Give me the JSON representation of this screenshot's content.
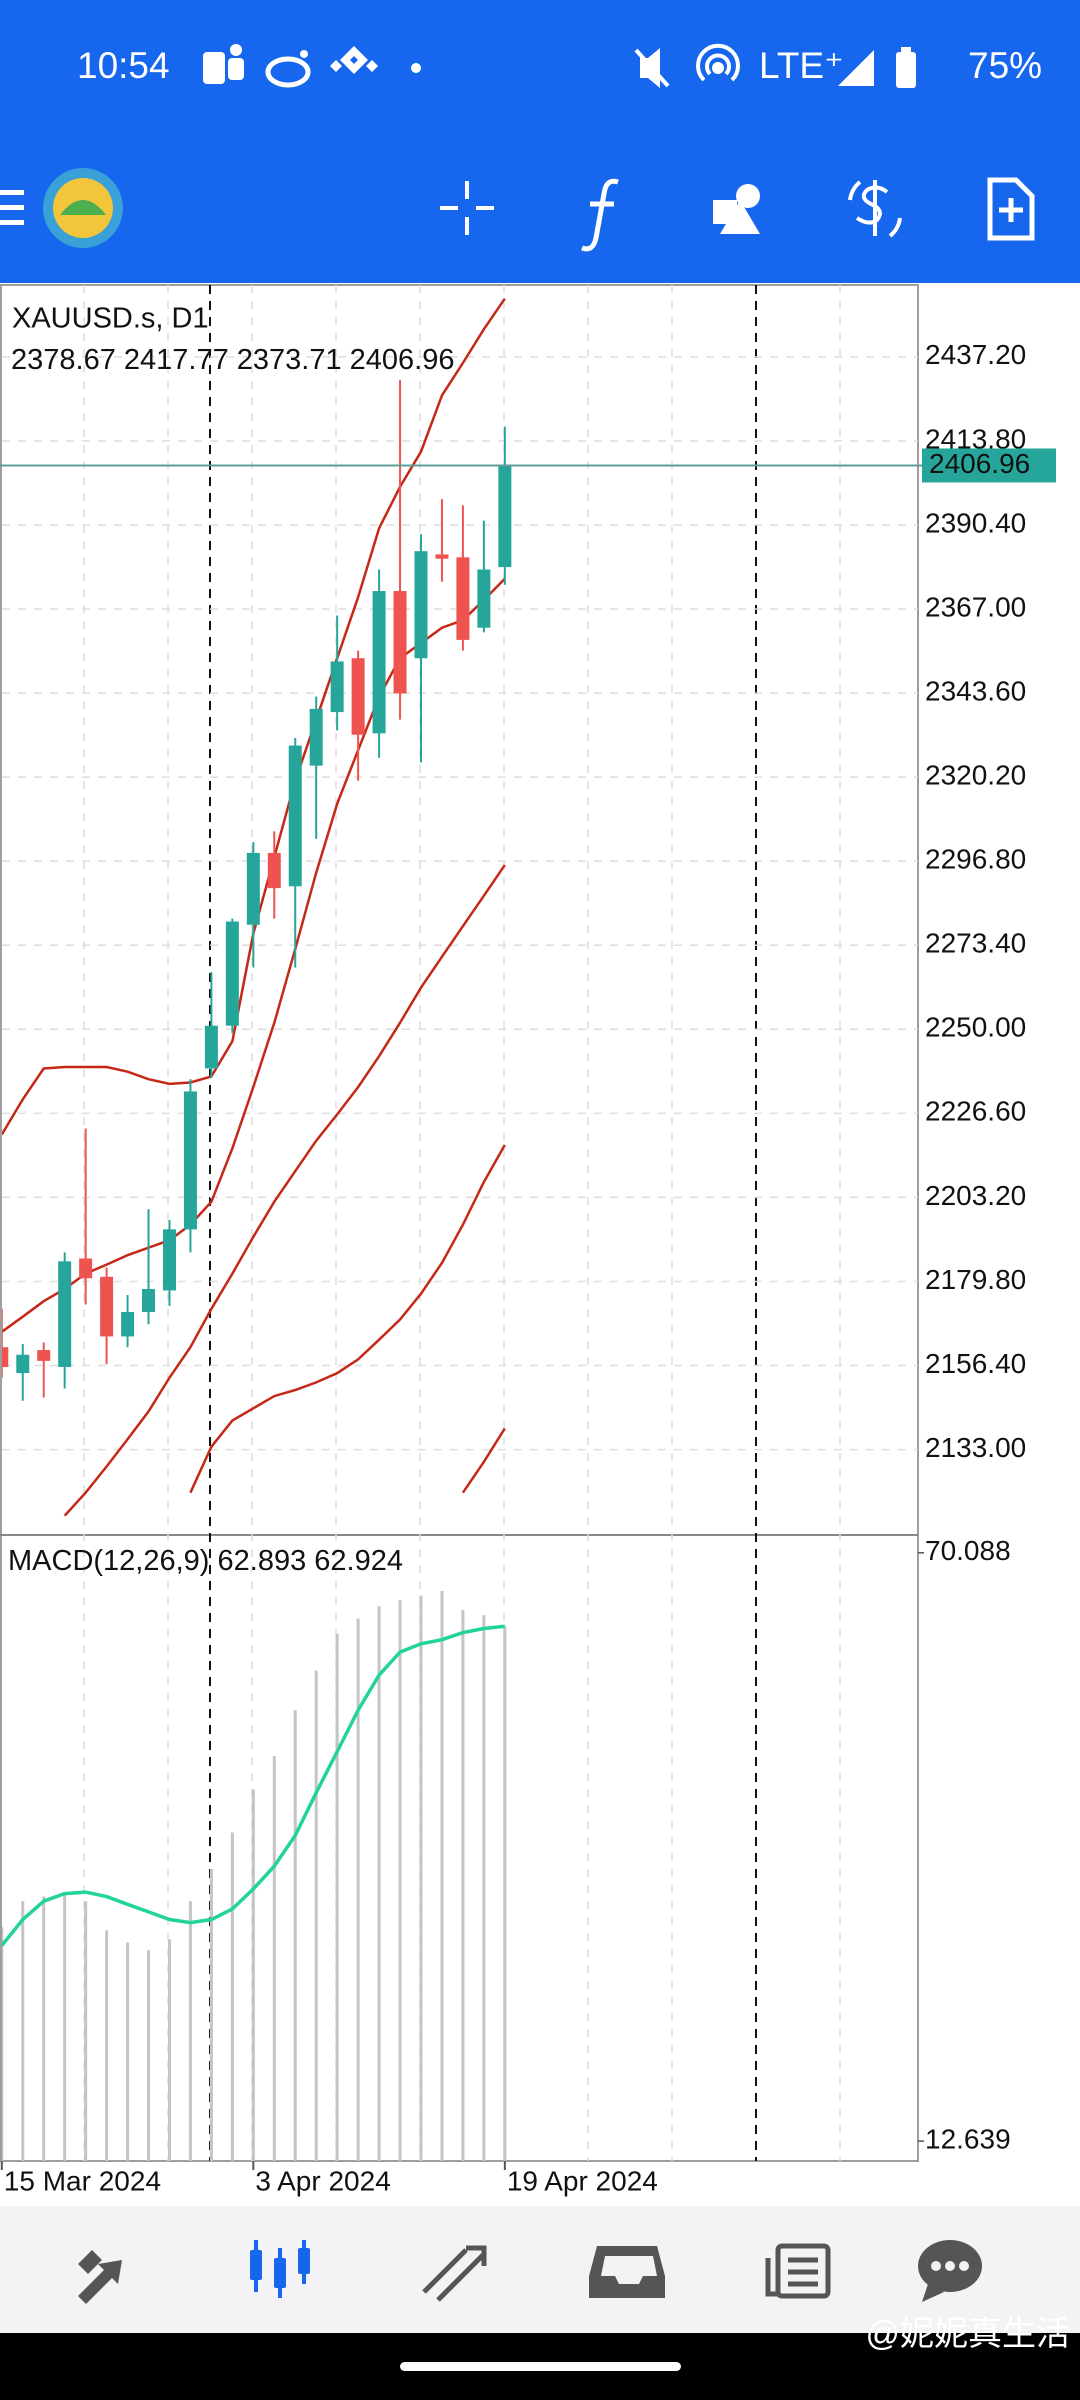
{
  "status_bar": {
    "time": "10:54",
    "network": "LTE⁺",
    "battery": "75%"
  },
  "chart_data": [
    {
      "type": "candlestick",
      "title": "XAUUSD.s, D1",
      "categories": [
        "15 Mar 2024",
        null,
        null,
        null,
        null,
        null,
        null,
        null,
        null,
        null,
        null,
        null,
        "3 Apr 2024",
        null,
        null,
        null,
        null,
        null,
        null,
        null,
        null,
        null,
        null,
        null,
        "19 Apr 2024"
      ],
      "open": [
        2161.5,
        2154.3,
        2160.7,
        2156.0,
        2186.2,
        2181.1,
        2164.5,
        2171.3,
        2177.3,
        2194.3,
        2239.1,
        2251.0,
        2279.1,
        2299.1,
        2289.8,
        2323.4,
        2338.3,
        2353.3,
        2332.4,
        2372.0,
        2353.3,
        2382.2,
        2381.4,
        2361.8,
        2378.67
      ],
      "high": [
        2172.2,
        2162.4,
        2162.8,
        2187.9,
        2222.4,
        2183.7,
        2176.0,
        2199.9,
        2196.9,
        2236.1,
        2265.9,
        2280.8,
        2302.1,
        2305.1,
        2331.1,
        2342.6,
        2365.2,
        2355.4,
        2378.0,
        2430.8,
        2387.8,
        2397.6,
        2395.9,
        2391.6,
        2417.77
      ],
      "low": [
        2153.0,
        2146.6,
        2147.5,
        2150.0,
        2173.4,
        2156.8,
        2161.5,
        2167.9,
        2173.0,
        2187.9,
        2236.5,
        2248.9,
        2267.2,
        2280.8,
        2267.2,
        2303.0,
        2333.2,
        2319.2,
        2325.6,
        2336.2,
        2324.3,
        2374.6,
        2355.4,
        2360.5,
        2373.71
      ],
      "close": [
        2156.0,
        2159.4,
        2157.7,
        2185.4,
        2180.7,
        2164.5,
        2171.3,
        2177.7,
        2194.3,
        2232.7,
        2251.0,
        2280.0,
        2299.1,
        2289.3,
        2329.0,
        2339.2,
        2352.4,
        2332.0,
        2372.0,
        2343.5,
        2383.1,
        2381.0,
        2358.4,
        2378.0,
        2406.96
      ],
      "up_color": "#26a69a",
      "down_color": "#ef5350",
      "indicator_lines": [
        {
          "color": "#c62818",
          "values": [
            2220.7,
            2230.5,
            2239.1,
            2239.5,
            2239.5,
            2239.5,
            2238.2,
            2236.1,
            2234.8,
            2235.2,
            2236.9,
            2246.7,
            2276.6,
            2297.9,
            2319.2,
            2336.2,
            2353.3,
            2370.3,
            2389.5,
            2401.0,
            2410.8,
            2426.5,
            2435.5,
            2444.9,
            2453.4
          ]
        },
        {
          "color": "#c62818",
          "values": [
            2165.8,
            2170.0,
            2174.3,
            2177.7,
            2182.0,
            2184.5,
            2187.1,
            2189.2,
            2191.3,
            2195.6,
            2202.0,
            2216.9,
            2233.9,
            2251.8,
            2272.3,
            2293.6,
            2312.8,
            2327.7,
            2342.6,
            2353.3,
            2357.5,
            2361.8,
            2363.9,
            2369.5,
            2375.4
          ]
        },
        {
          "color": "#c62818",
          "values": [
            null,
            null,
            null,
            2114.6,
            2121.0,
            2128.3,
            2135.9,
            2143.6,
            2153.0,
            2161.5,
            2172.2,
            2182.0,
            2192.2,
            2202.0,
            2210.5,
            2219.0,
            2226.3,
            2233.9,
            2242.5,
            2251.8,
            2261.6,
            2270.2,
            2278.7,
            2287.2,
            2295.7
          ]
        },
        {
          "color": "#c62818",
          "values": [
            null,
            null,
            null,
            null,
            null,
            null,
            null,
            null,
            null,
            2121.0,
            2133.8,
            2141.1,
            2144.5,
            2147.9,
            2149.6,
            2151.7,
            2154.3,
            2158.1,
            2163.6,
            2169.2,
            2176.4,
            2185.0,
            2195.6,
            2207.5,
            2217.8
          ]
        },
        {
          "color": "#c62818",
          "values": [
            null,
            null,
            null,
            null,
            null,
            null,
            null,
            null,
            null,
            null,
            null,
            null,
            null,
            null,
            null,
            null,
            null,
            null,
            null,
            null,
            null,
            null,
            2121.0,
            2129.6,
            2138.9
          ]
        }
      ],
      "last_price_color": "#26a69a",
      "ylim": [
        2109.5,
        2457.2
      ],
      "yticks": [
        {
          "value": 2133,
          "label": "2133.00"
        },
        {
          "value": 2156.4,
          "label": "2156.40"
        },
        {
          "value": 2179.8,
          "label": "2179.80"
        },
        {
          "value": 2203.2,
          "label": "2203.20"
        },
        {
          "value": 2226.6,
          "label": "2226.60"
        },
        {
          "value": 2250,
          "label": "2250.00"
        },
        {
          "value": 2273.4,
          "label": "2273.40"
        },
        {
          "value": 2296.8,
          "label": "2296.80"
        },
        {
          "value": 2320.2,
          "label": "2320.20"
        },
        {
          "value": 2343.6,
          "label": "2343.60"
        },
        {
          "value": 2367,
          "label": "2367.00"
        },
        {
          "value": 2390.4,
          "label": "2390.40"
        },
        {
          "value": 2413.8,
          "label": "2413.80"
        },
        {
          "value": 2437.2,
          "label": "2437.20"
        }
      ],
      "grid": true
    },
    {
      "type": "macd",
      "title": "MACD(12,26,9)",
      "series": [
        {
          "type": "bar",
          "color": "#c4c4c4",
          "values": [
            33.53,
            36.07,
            36.52,
            36.96,
            36.07,
            33.23,
            32.04,
            31.29,
            32.34,
            36.07,
            39.2,
            42.78,
            46.96,
            50.24,
            54.72,
            58.6,
            62.18,
            63.67,
            64.87,
            65.46,
            65.91,
            66.36,
            64.5,
            64.0,
            62.893
          ]
        },
        {
          "type": "line",
          "color": "#22d39a",
          "values": [
            31.74,
            34.28,
            36.07,
            36.81,
            36.96,
            36.52,
            35.77,
            35.02,
            34.28,
            33.98,
            34.28,
            35.32,
            37.26,
            39.5,
            42.48,
            46.66,
            50.69,
            54.72,
            58.15,
            60.39,
            61.2,
            61.6,
            62.3,
            62.7,
            62.924
          ]
        }
      ],
      "ylim": [
        10.7,
        71.73
      ],
      "yticks": [
        12.639,
        70.088
      ]
    }
  ],
  "watermark": "@妮妮真生活"
}
